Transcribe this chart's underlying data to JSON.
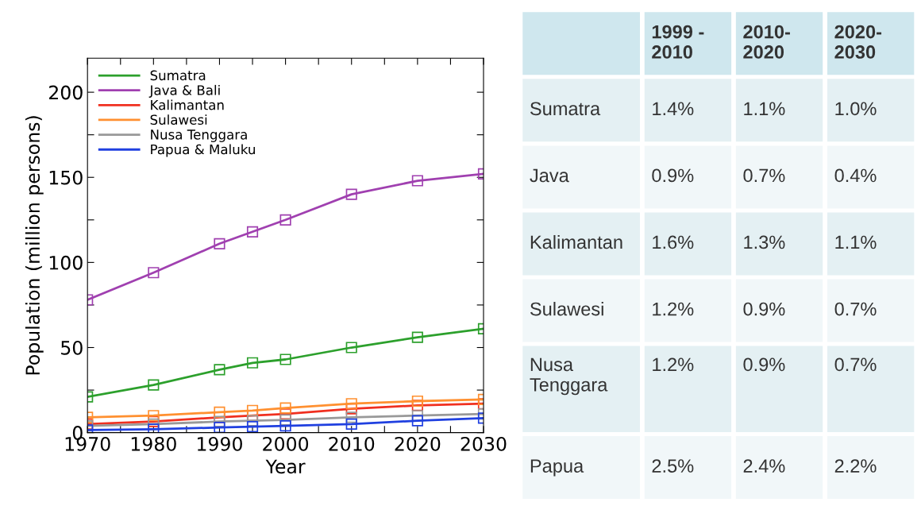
{
  "chart_data": [
    {
      "type": "line",
      "xlabel": "Year",
      "ylabel": "Population (million persons)",
      "x": [
        1970,
        1980,
        1990,
        1995,
        2000,
        2010,
        2020,
        2030
      ],
      "series": [
        {
          "name": "Sumatra",
          "color": "#2ca02c",
          "values": [
            21,
            28,
            37,
            41,
            43,
            50,
            56,
            61
          ]
        },
        {
          "name": "Java & Bali",
          "color": "#a040b0",
          "values": [
            78,
            94,
            111,
            118,
            125,
            140,
            148,
            152
          ]
        },
        {
          "name": "Kalimantan",
          "color": "#f03020",
          "values": [
            5,
            6.5,
            9,
            10,
            11,
            14,
            16,
            17
          ]
        },
        {
          "name": "Sulawesi",
          "color": "#ff9030",
          "values": [
            9,
            10,
            12,
            13,
            14.5,
            17,
            18.5,
            19.5
          ]
        },
        {
          "name": "Nusa Tenggara",
          "color": "#999999",
          "values": [
            4,
            5,
            6.5,
            7,
            7.5,
            9,
            10,
            11
          ]
        },
        {
          "name": "Papua & Maluku",
          "color": "#2040e0",
          "values": [
            1.5,
            2,
            3,
            3.5,
            4,
            5,
            7,
            8.5
          ]
        }
      ],
      "xlim": [
        1970,
        2030
      ],
      "ylim": [
        0,
        220
      ],
      "xticks": [
        1970,
        {
          "value": 1975,
          "label": null
        },
        1980,
        {
          "value": 1985,
          "label": null
        },
        1990,
        {
          "value": 1995,
          "label": null
        },
        2000,
        {
          "value": 2005,
          "label": null
        },
        2010,
        {
          "value": 2015,
          "label": null
        },
        2020,
        {
          "value": 2025,
          "label": null
        },
        2030
      ],
      "yticks": [
        0,
        {
          "value": 25,
          "label": null
        },
        50,
        {
          "value": 75,
          "label": null
        },
        100,
        {
          "value": 125,
          "label": null
        },
        150,
        {
          "value": 175,
          "label": null
        },
        200
      ],
      "marker": "square",
      "legend": "top left",
      "grid": false
    },
    {
      "type": "other",
      "categories": [
        "1999 -\n2010",
        "2010-\n2020",
        "2020-\n2030"
      ],
      "y_categories": [
        "Sumatra",
        "Java",
        "Kalimantan",
        "Sulawesi",
        "Nusa\nTenggara",
        "Papua"
      ],
      "cell_labels": [
        [
          "1.4%",
          "1.1%",
          "1.0%"
        ],
        [
          "0.9%",
          "0.7%",
          "0.4%"
        ],
        [
          "1.6%",
          "1.3%",
          "1.1%"
        ],
        [
          "1.2%",
          "0.9%",
          "0.7%"
        ],
        [
          "1.2%",
          "0.9%",
          "0.7%"
        ],
        [
          "2.5%",
          "2.4%",
          "2.2%"
        ]
      ]
    }
  ]
}
